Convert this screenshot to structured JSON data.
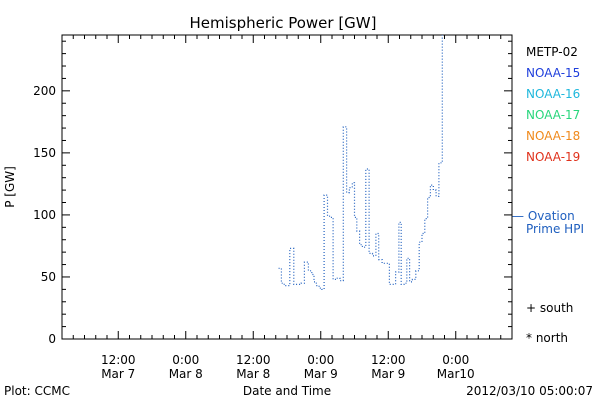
{
  "chart_data": {
    "type": "line",
    "title": "Hemispheric Power [GW]",
    "xlabel": "Date and Time",
    "ylabel": "P [GW]",
    "x_unit": "hours since 2012-03-06 00:00 UTC",
    "x_range": [
      2,
      82
    ],
    "y_range": [
      0,
      245
    ],
    "y_ticks": [
      0,
      50,
      100,
      150,
      200
    ],
    "x_ticks": [
      {
        "x": 12,
        "line1": "12:00",
        "line2": "Mar 7"
      },
      {
        "x": 24,
        "line1": "0:00",
        "line2": "Mar 8"
      },
      {
        "x": 36,
        "line1": "12:00",
        "line2": "Mar 8"
      },
      {
        "x": 48,
        "line1": "0:00",
        "line2": "Mar 9"
      },
      {
        "x": 60,
        "line1": "12:00",
        "line2": "Mar 9"
      },
      {
        "x": 72,
        "line1": "0:00",
        "line2": "Mar10"
      }
    ],
    "legend": {
      "placement": "right",
      "satellites": [
        {
          "name": "METP-02",
          "color": "#000000"
        },
        {
          "name": "NOAA-15",
          "color": "#1f3fdc"
        },
        {
          "name": "NOAA-16",
          "color": "#1fb8dc"
        },
        {
          "name": "NOAA-17",
          "color": "#28d67c"
        },
        {
          "name": "NOAA-18",
          "color": "#f08a1c"
        },
        {
          "name": "NOAA-19",
          "color": "#e0321c"
        }
      ],
      "ovation": {
        "line1": "— Ovation",
        "line2": "Prime HPI",
        "color": "#1f5fbf"
      },
      "markers": [
        "+ south",
        "* north"
      ]
    },
    "series": [
      {
        "name": "Ovation Prime HPI",
        "color": "#1f5fbf",
        "style": "dotted-step",
        "points": [
          [
            40.5,
            57
          ],
          [
            41,
            45
          ],
          [
            41.5,
            43
          ],
          [
            42,
            43
          ],
          [
            42.5,
            73
          ],
          [
            43.2,
            44
          ],
          [
            44,
            44
          ],
          [
            44.5,
            45
          ],
          [
            45.1,
            62
          ],
          [
            45.8,
            55
          ],
          [
            46.4,
            52
          ],
          [
            46.8,
            46
          ],
          [
            47.2,
            43
          ],
          [
            47.7,
            41
          ],
          [
            48.2,
            40
          ],
          [
            48.6,
            116
          ],
          [
            49.2,
            99
          ],
          [
            49.7,
            98
          ],
          [
            50.2,
            48
          ],
          [
            50.8,
            49
          ],
          [
            51.4,
            47
          ],
          [
            52,
            171
          ],
          [
            52.6,
            118
          ],
          [
            53.1,
            122
          ],
          [
            53.6,
            126
          ],
          [
            54,
            98
          ],
          [
            54.4,
            87
          ],
          [
            54.9,
            76
          ],
          [
            55.4,
            74
          ],
          [
            56,
            137
          ],
          [
            56.6,
            69
          ],
          [
            57.2,
            67
          ],
          [
            57.8,
            85
          ],
          [
            58.3,
            64
          ],
          [
            58.9,
            61
          ],
          [
            59.6,
            61
          ],
          [
            60.2,
            44
          ],
          [
            60.8,
            44
          ],
          [
            61.3,
            54
          ],
          [
            61.9,
            94
          ],
          [
            62.3,
            44
          ],
          [
            62.8,
            45
          ],
          [
            63.3,
            65
          ],
          [
            63.8,
            46
          ],
          [
            64.3,
            48
          ],
          [
            64.9,
            55
          ],
          [
            65.5,
            78
          ],
          [
            66,
            85
          ],
          [
            66.5,
            97
          ],
          [
            67,
            114
          ],
          [
            67.5,
            124
          ],
          [
            68,
            120
          ],
          [
            68.5,
            115
          ],
          [
            69,
            142
          ],
          [
            69.6,
            245
          ]
        ]
      }
    ]
  },
  "footer": {
    "left": "Plot: CCMC",
    "right": "2012/03/10 05:00:07"
  }
}
